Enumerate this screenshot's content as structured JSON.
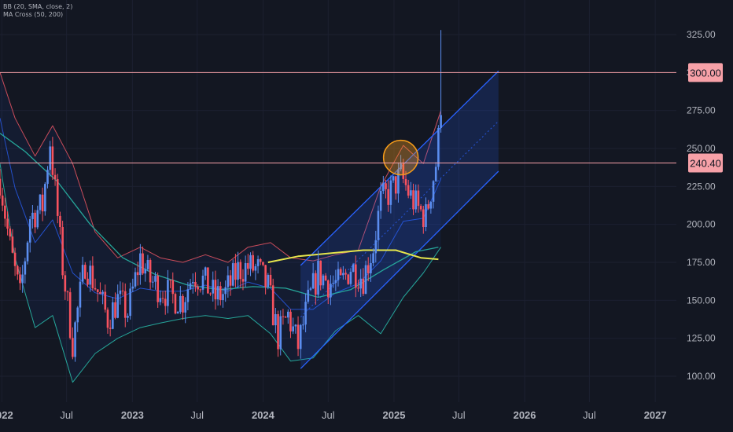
{
  "indicators": {
    "bb": "BB (20, SMA, close, 2)",
    "ma": "MA Cross (50, 200)"
  },
  "chart_data": {
    "type": "candlestick",
    "title": "",
    "ylim": [
      90,
      335
    ],
    "y_ticks": [
      "100.00",
      "125.00",
      "150.00",
      "175.00",
      "200.00",
      "225.00",
      "250.00",
      "275.00",
      "300.00",
      "325.00"
    ],
    "y_tick_values": [
      100,
      125,
      150,
      175,
      200,
      225,
      250,
      275,
      300,
      325
    ],
    "x_ticks": [
      "2022",
      "Jul",
      "2023",
      "Jul",
      "2024",
      "Jul",
      "2025",
      "Jul",
      "2026",
      "Jul",
      "2027"
    ],
    "x_tick_dates": [
      "2022-01-01",
      "2022-07-01",
      "2023-01-01",
      "2023-07-01",
      "2024-01-01",
      "2024-07-01",
      "2025-01-01",
      "2025-07-01",
      "2026-01-01",
      "2026-07-01",
      "2027-01-01"
    ],
    "xlim": [
      "2021-12-27",
      "2027-03-01"
    ],
    "horizontal_levels": [
      {
        "value": 300.0,
        "label": "300.00",
        "color": "#f7a1a8"
      },
      {
        "value": 240.4,
        "label": "240.40",
        "color": "#f7a1a8"
      }
    ],
    "channel": {
      "start": "2024-04-15",
      "end": "2025-10-20",
      "upper": [
        173,
        301
      ],
      "lower": [
        105,
        235
      ],
      "mid": [
        139,
        268
      ],
      "color": "#2962ff"
    },
    "highlight": {
      "date": "2025-01-20",
      "value": 244,
      "color": "#f59c1a"
    },
    "candle_colors": {
      "up": "#5b8def",
      "down": "#f7525f"
    },
    "price_path": [
      [
        "2021-12-27",
        230
      ],
      [
        "2022-01-24",
        185
      ],
      [
        "2022-02-21",
        152
      ],
      [
        "2022-03-21",
        205
      ],
      [
        "2022-04-25",
        212
      ],
      [
        "2022-05-16",
        255
      ],
      [
        "2022-06-20",
        172
      ],
      [
        "2022-07-18",
        122
      ],
      [
        "2022-08-22",
        175
      ],
      [
        "2022-09-19",
        160
      ],
      [
        "2022-10-24",
        138
      ],
      [
        "2022-11-21",
        150
      ],
      [
        "2022-12-19",
        142
      ],
      [
        "2023-01-23",
        178
      ],
      [
        "2023-02-20",
        163
      ],
      [
        "2023-03-20",
        158
      ],
      [
        "2023-04-24",
        152
      ],
      [
        "2023-05-22",
        150
      ],
      [
        "2023-06-19",
        168
      ],
      [
        "2023-07-17",
        163
      ],
      [
        "2023-08-21",
        152
      ],
      [
        "2023-09-18",
        155
      ],
      [
        "2023-10-23",
        170
      ],
      [
        "2023-11-20",
        172
      ],
      [
        "2023-12-18",
        170
      ],
      [
        "2024-01-15",
        158
      ],
      [
        "2024-02-12",
        126
      ],
      [
        "2024-03-11",
        140
      ],
      [
        "2024-04-08",
        120
      ],
      [
        "2024-05-06",
        148
      ],
      [
        "2024-06-03",
        168
      ],
      [
        "2024-07-01",
        162
      ],
      [
        "2024-08-05",
        160
      ],
      [
        "2024-09-02",
        172
      ],
      [
        "2024-10-07",
        165
      ],
      [
        "2024-11-04",
        185
      ],
      [
        "2024-11-25",
        215
      ],
      [
        "2024-12-23",
        222
      ],
      [
        "2025-01-20",
        232
      ],
      [
        "2025-02-17",
        218
      ],
      [
        "2025-03-10",
        210
      ],
      [
        "2025-03-31",
        205
      ],
      [
        "2025-04-28",
        240
      ],
      [
        "2025-05-12",
        272
      ]
    ],
    "ma_cross": {
      "fast": {
        "color": "#26a69a",
        "points": [
          [
            "2021-12-27",
            260
          ],
          [
            "2022-03-07",
            248
          ],
          [
            "2022-06-06",
            228
          ],
          [
            "2022-09-05",
            200
          ],
          [
            "2022-12-05",
            178
          ],
          [
            "2023-03-06",
            167
          ],
          [
            "2023-06-05",
            160
          ],
          [
            "2023-09-04",
            157
          ],
          [
            "2023-12-04",
            159
          ],
          [
            "2024-03-04",
            158
          ],
          [
            "2024-06-03",
            152
          ],
          [
            "2024-09-02",
            157
          ],
          [
            "2024-12-02",
            170
          ],
          [
            "2025-03-03",
            182
          ],
          [
            "2025-05-05",
            185
          ]
        ]
      },
      "slow": {
        "color": "#e6e64c",
        "points": [
          [
            "2024-01-15",
            175
          ],
          [
            "2024-04-08",
            179
          ],
          [
            "2024-07-08",
            181
          ],
          [
            "2024-10-07",
            183
          ],
          [
            "2025-01-06",
            183
          ],
          [
            "2025-03-17",
            178
          ],
          [
            "2025-05-05",
            177
          ]
        ]
      }
    },
    "bollinger": {
      "upper_color": "#c94c5a",
      "lower_color": "#26a69a",
      "basis_color": "#2962ff",
      "upper": [
        [
          "2021-12-27",
          300
        ],
        [
          "2022-02-07",
          270
        ],
        [
          "2022-04-04",
          245
        ],
        [
          "2022-05-23",
          265
        ],
        [
          "2022-07-18",
          240
        ],
        [
          "2022-09-19",
          195
        ],
        [
          "2022-11-21",
          178
        ],
        [
          "2023-01-23",
          185
        ],
        [
          "2023-03-20",
          178
        ],
        [
          "2023-05-22",
          175
        ],
        [
          "2023-07-24",
          180
        ],
        [
          "2023-09-25",
          175
        ],
        [
          "2023-11-20",
          185
        ],
        [
          "2024-01-22",
          188
        ],
        [
          "2024-03-18",
          178
        ],
        [
          "2024-05-20",
          176
        ],
        [
          "2024-07-22",
          180
        ],
        [
          "2024-09-23",
          183
        ],
        [
          "2024-11-25",
          225
        ],
        [
          "2025-01-27",
          252
        ],
        [
          "2025-03-24",
          240
        ],
        [
          "2025-05-12",
          275
        ]
      ],
      "lower": [
        [
          "2021-12-27",
          240
        ],
        [
          "2022-02-07",
          178
        ],
        [
          "2022-04-04",
          132
        ],
        [
          "2022-05-23",
          140
        ],
        [
          "2022-07-18",
          96
        ],
        [
          "2022-09-19",
          115
        ],
        [
          "2022-11-21",
          125
        ],
        [
          "2023-01-23",
          132
        ],
        [
          "2023-03-20",
          135
        ],
        [
          "2023-05-22",
          138
        ],
        [
          "2023-07-24",
          140
        ],
        [
          "2023-09-25",
          138
        ],
        [
          "2023-11-20",
          140
        ],
        [
          "2024-01-22",
          128
        ],
        [
          "2024-03-18",
          110
        ],
        [
          "2024-05-20",
          112
        ],
        [
          "2024-07-22",
          130
        ],
        [
          "2024-09-23",
          140
        ],
        [
          "2024-11-25",
          128
        ],
        [
          "2025-01-27",
          152
        ],
        [
          "2025-03-24",
          168
        ],
        [
          "2025-05-12",
          185
        ]
      ],
      "basis": [
        [
          "2021-12-27",
          270
        ],
        [
          "2022-02-07",
          224
        ],
        [
          "2022-04-04",
          188
        ],
        [
          "2022-05-23",
          203
        ],
        [
          "2022-07-18",
          168
        ],
        [
          "2022-09-19",
          155
        ],
        [
          "2022-11-21",
          151
        ],
        [
          "2023-01-23",
          158
        ],
        [
          "2023-03-20",
          156
        ],
        [
          "2023-05-22",
          156
        ],
        [
          "2023-07-24",
          160
        ],
        [
          "2023-09-25",
          156
        ],
        [
          "2023-11-20",
          162
        ],
        [
          "2024-01-22",
          158
        ],
        [
          "2024-03-18",
          144
        ],
        [
          "2024-05-20",
          144
        ],
        [
          "2024-07-22",
          155
        ],
        [
          "2024-09-23",
          161
        ],
        [
          "2024-11-25",
          176
        ],
        [
          "2025-01-27",
          202
        ],
        [
          "2025-03-24",
          204
        ],
        [
          "2025-05-12",
          230
        ]
      ]
    }
  }
}
